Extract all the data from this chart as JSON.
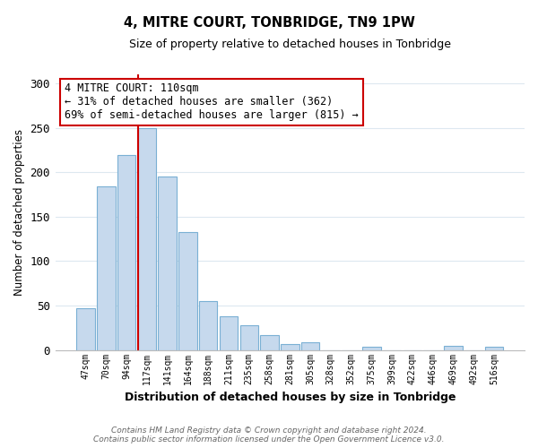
{
  "title": "4, MITRE COURT, TONBRIDGE, TN9 1PW",
  "subtitle": "Size of property relative to detached houses in Tonbridge",
  "xlabel": "Distribution of detached houses by size in Tonbridge",
  "ylabel": "Number of detached properties",
  "bar_labels": [
    "47sqm",
    "70sqm",
    "94sqm",
    "117sqm",
    "141sqm",
    "164sqm",
    "188sqm",
    "211sqm",
    "235sqm",
    "258sqm",
    "281sqm",
    "305sqm",
    "328sqm",
    "352sqm",
    "375sqm",
    "399sqm",
    "422sqm",
    "446sqm",
    "469sqm",
    "492sqm",
    "516sqm"
  ],
  "bar_values": [
    47,
    184,
    219,
    250,
    195,
    133,
    55,
    38,
    28,
    17,
    7,
    9,
    0,
    0,
    4,
    0,
    0,
    0,
    5,
    0,
    4
  ],
  "bar_color": "#c6d9ed",
  "bar_edge_color": "#7ab0d4",
  "vline_color": "#cc0000",
  "ylim": [
    0,
    310
  ],
  "yticks": [
    0,
    50,
    100,
    150,
    200,
    250,
    300
  ],
  "annotation_title": "4 MITRE COURT: 110sqm",
  "annotation_line1": "← 31% of detached houses are smaller (362)",
  "annotation_line2": "69% of semi-detached houses are larger (815) →",
  "annotation_box_edge_color": "#cc0000",
  "footer1": "Contains HM Land Registry data © Crown copyright and database right 2024.",
  "footer2": "Contains public sector information licensed under the Open Government Licence v3.0.",
  "background_color": "#ffffff",
  "grid_color": "#dde8f0"
}
